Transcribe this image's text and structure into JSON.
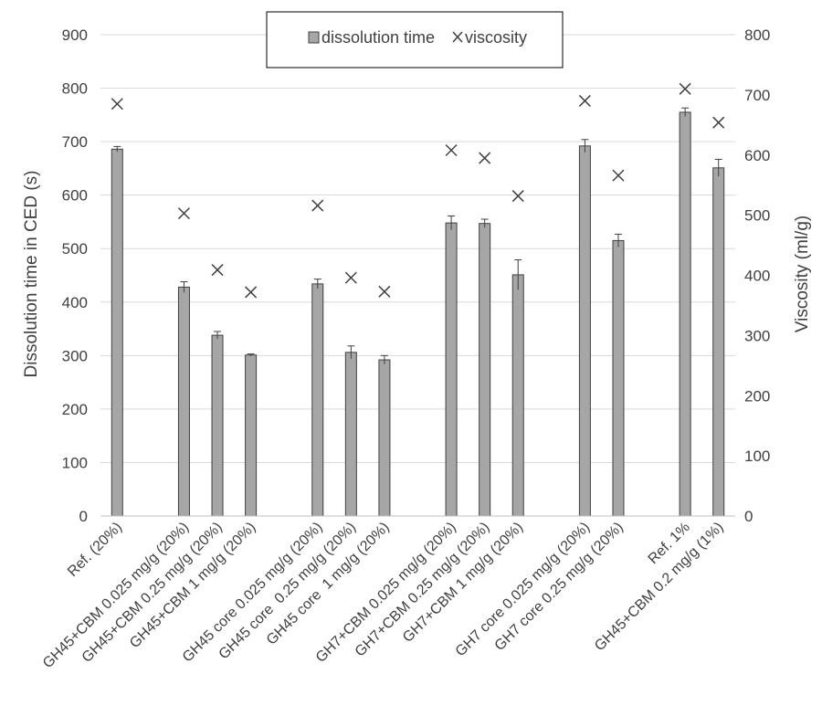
{
  "chart_data": {
    "type": "bar",
    "title": "",
    "categories": [
      "Ref. (20%)",
      "",
      "GH45+CBM 0.025 mg/g (20%)",
      "GH45+CBM 0.25 mg/g (20%)",
      "GH45+CBM 1 mg/g (20%)",
      "",
      "GH45 core 0.025 mg/g (20%)",
      "GH45 core  0.25 mg/g (20%)",
      "GH45 core  1 mg/g (20%)",
      "",
      "GH7+CBM 0.025 mg/g (20%)",
      "GH7+CBM 0.25 mg/g (20%)",
      "GH7+CBM 1 mg/g (20%)",
      "",
      "GH7 core 0.025 mg/g (20%)",
      "GH7 core 0.25 mg/g (20%)",
      "",
      "Ref. 1%",
      "GH45+CBM 0.2 mg/g (1%)"
    ],
    "series": [
      {
        "name": "dissolution time",
        "kind": "bar",
        "axis": "left",
        "values": [
          686,
          null,
          428,
          338,
          301,
          null,
          434,
          306,
          292,
          null,
          548,
          547,
          451,
          null,
          692,
          515,
          null,
          755,
          651
        ],
        "error": [
          5,
          null,
          10,
          7,
          2,
          null,
          9,
          12,
          8,
          null,
          13,
          8,
          28,
          null,
          12,
          12,
          null,
          8,
          16
        ]
      },
      {
        "name": "viscosity",
        "kind": "scatter",
        "marker": "x",
        "axis": "right",
        "values": [
          685,
          null,
          503,
          409,
          372,
          null,
          516,
          396,
          373,
          null,
          608,
          595,
          532,
          null,
          690,
          566,
          null,
          710,
          654
        ]
      }
    ],
    "ylabel": "Dissolution time in CED (s)",
    "ylim": [
      0,
      900
    ],
    "yticks": [
      0,
      100,
      200,
      300,
      400,
      500,
      600,
      700,
      800,
      900
    ],
    "y2label": "Viscosity (ml/g)",
    "y2lim": [
      0,
      800
    ],
    "y2ticks": [
      0,
      100,
      200,
      300,
      400,
      500,
      600,
      700,
      800
    ],
    "grid": true,
    "legend_position": "top-center",
    "colors": {
      "bar_fill": "#a6a6a6",
      "bar_stroke": "#404040",
      "marker": "#404040",
      "grid": "#d9d9d9",
      "text": "#404040"
    }
  }
}
